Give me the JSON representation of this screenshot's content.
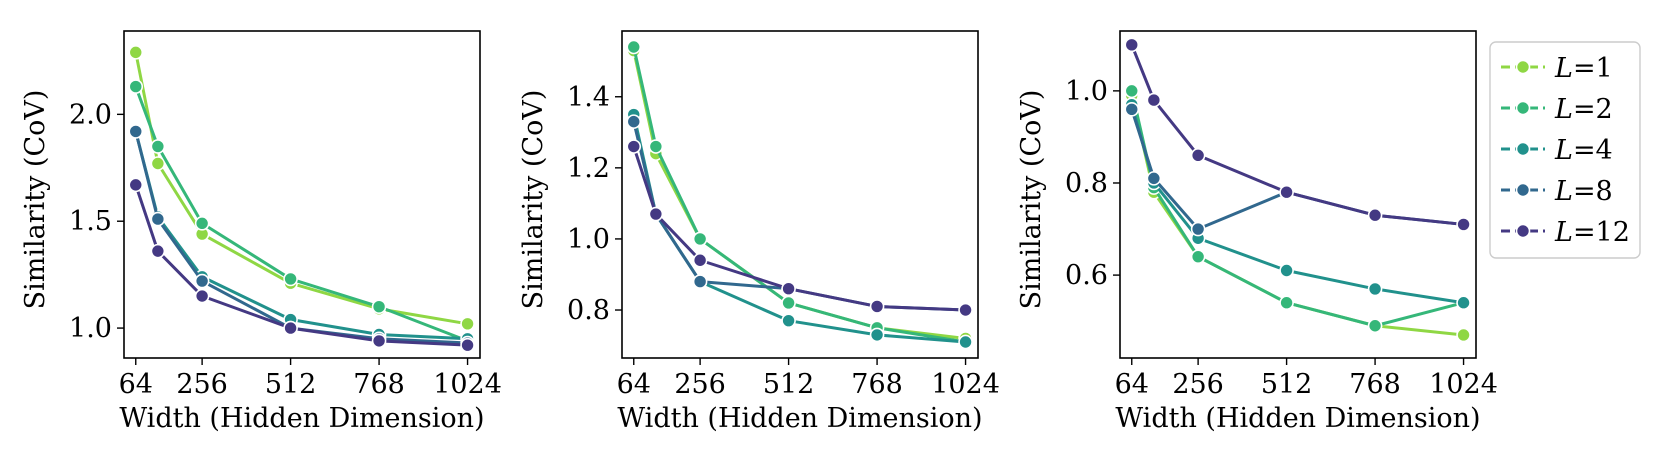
{
  "colors": {
    "L=1": "#8fd744",
    "L=2": "#35b779",
    "L=4": "#21918c",
    "L=8": "#31688e",
    "L=12": "#443983"
  },
  "legend": {
    "placement": "right, outside plots",
    "entries": [
      {
        "prefix": "L",
        "suffix": "=1"
      },
      {
        "prefix": "L",
        "suffix": "=2"
      },
      {
        "prefix": "L",
        "suffix": "=4"
      },
      {
        "prefix": "L",
        "suffix": "=8"
      },
      {
        "prefix": "L",
        "suffix": "=12"
      }
    ]
  },
  "chart_data": [
    {
      "type": "line",
      "title": "",
      "xlabel": "Width (Hidden Dimension)",
      "ylabel": "Similarity (CoV)",
      "xticks": [
        64,
        256,
        512,
        768,
        1024
      ],
      "yticks": [
        1.0,
        1.5,
        2.0
      ],
      "ytick_labels": [
        "1.0",
        "1.5",
        "2.0"
      ],
      "xlim": [
        30,
        1060
      ],
      "ylim": [
        0.86,
        2.39
      ],
      "grid": false,
      "x": [
        64,
        128,
        256,
        512,
        768,
        1024
      ],
      "series": [
        {
          "name": "L=1",
          "values": [
            2.29,
            1.77,
            1.44,
            1.21,
            1.09,
            1.02
          ]
        },
        {
          "name": "L=2",
          "values": [
            2.13,
            1.85,
            1.49,
            1.23,
            1.1,
            0.94
          ]
        },
        {
          "name": "L=4",
          "values": [
            1.92,
            1.52,
            1.24,
            1.04,
            0.97,
            0.95
          ]
        },
        {
          "name": "L=8",
          "values": [
            1.92,
            1.51,
            1.22,
            1.0,
            0.95,
            0.93
          ]
        },
        {
          "name": "L=12",
          "values": [
            1.67,
            1.36,
            1.15,
            1.0,
            0.94,
            0.92
          ]
        }
      ]
    },
    {
      "type": "line",
      "title": "",
      "xlabel": "Width (Hidden Dimension)",
      "ylabel": "Similarity (CoV)",
      "xticks": [
        64,
        256,
        512,
        768,
        1024
      ],
      "yticks": [
        0.8,
        1.0,
        1.2,
        1.4
      ],
      "ytick_labels": [
        "0.8",
        "1.0",
        "1.2",
        "1.4"
      ],
      "xlim": [
        30,
        1060
      ],
      "ylim": [
        0.665,
        1.585
      ],
      "grid": false,
      "x": [
        64,
        128,
        256,
        512,
        768,
        1024
      ],
      "series": [
        {
          "name": "L=1",
          "values": [
            1.53,
            1.24,
            1.0,
            0.82,
            0.75,
            0.72
          ]
        },
        {
          "name": "L=2",
          "values": [
            1.54,
            1.26,
            1.0,
            0.82,
            0.75,
            0.71
          ]
        },
        {
          "name": "L=4",
          "values": [
            1.35,
            1.07,
            0.88,
            0.77,
            0.73,
            0.71
          ]
        },
        {
          "name": "L=8",
          "values": [
            1.33,
            1.07,
            0.88,
            0.86,
            0.81,
            0.8
          ]
        },
        {
          "name": "L=12",
          "values": [
            1.26,
            1.07,
            0.94,
            0.86,
            0.81,
            0.8
          ]
        }
      ]
    },
    {
      "type": "line",
      "title": "",
      "xlabel": "Width (Hidden Dimension)",
      "ylabel": "Similarity (CoV)",
      "xticks": [
        64,
        256,
        512,
        768,
        1024
      ],
      "yticks": [
        0.6,
        0.8,
        1.0
      ],
      "ytick_labels": [
        "0.6",
        "0.8",
        "1.0"
      ],
      "xlim": [
        30,
        1060
      ],
      "ylim": [
        0.42,
        1.13
      ],
      "grid": false,
      "x": [
        64,
        128,
        256,
        512,
        768,
        1024
      ],
      "series": [
        {
          "name": "L=1",
          "values": [
            0.99,
            0.78,
            0.64,
            0.54,
            0.49,
            0.47
          ]
        },
        {
          "name": "L=2",
          "values": [
            1.0,
            0.79,
            0.64,
            0.54,
            0.49,
            0.54
          ]
        },
        {
          "name": "L=4",
          "values": [
            0.97,
            0.8,
            0.68,
            0.61,
            0.57,
            0.54
          ]
        },
        {
          "name": "L=8",
          "values": [
            0.96,
            0.81,
            0.7,
            0.78,
            0.73,
            0.71
          ]
        },
        {
          "name": "L=12",
          "values": [
            1.1,
            0.98,
            0.86,
            0.78,
            0.73,
            0.71
          ]
        }
      ]
    }
  ]
}
